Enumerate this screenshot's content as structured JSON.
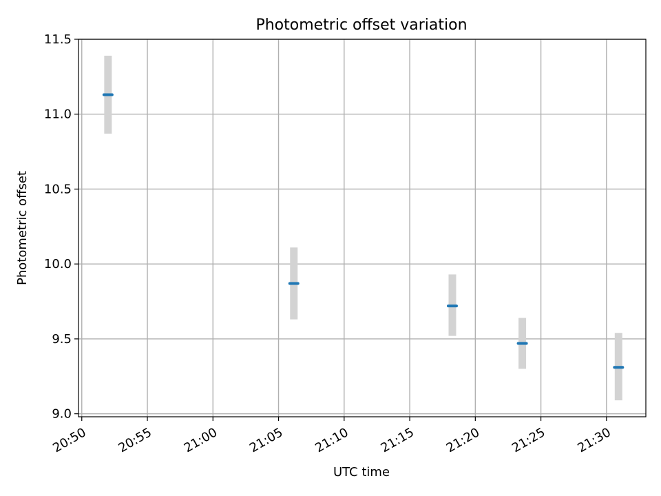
{
  "chart_data": {
    "type": "scatter",
    "title": "Photometric offset variation",
    "xlabel": "UTC time",
    "ylabel": "Photometric offset",
    "xlim": [
      "20:49:45",
      "21:33:00"
    ],
    "ylim": [
      8.98,
      11.5
    ],
    "x_ticks": [
      "20:50",
      "20:55",
      "21:00",
      "21:05",
      "21:10",
      "21:15",
      "21:20",
      "21:25",
      "21:30"
    ],
    "y_ticks": [
      "9.0",
      "9.5",
      "10.0",
      "10.5",
      "11.0",
      "11.5"
    ],
    "grid": true,
    "points": [
      {
        "x": "20:52:00",
        "y": 11.13,
        "y_low": 10.87,
        "y_high": 11.39
      },
      {
        "x": "21:06:10",
        "y": 9.87,
        "y_low": 9.63,
        "y_high": 10.11
      },
      {
        "x": "21:18:15",
        "y": 9.72,
        "y_low": 9.52,
        "y_high": 9.93
      },
      {
        "x": "21:23:35",
        "y": 9.47,
        "y_low": 9.3,
        "y_high": 9.64
      },
      {
        "x": "21:30:55",
        "y": 9.31,
        "y_low": 9.09,
        "y_high": 9.54
      }
    ],
    "colors": {
      "marker": "#1f77b4",
      "errorbar": "#d3d3d3",
      "grid": "#b0b0b0",
      "axis": "#000000"
    }
  }
}
